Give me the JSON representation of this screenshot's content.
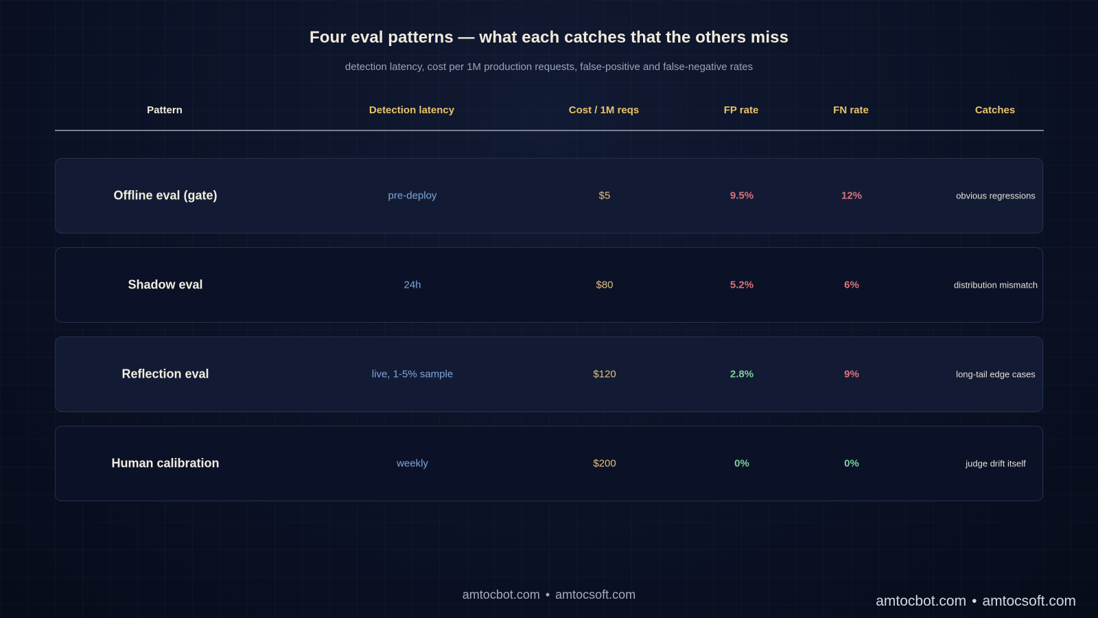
{
  "title": "Four eval patterns — what each catches that the others miss",
  "subtitle": "detection latency, cost per 1M production requests, false-positive and false-negative rates",
  "columns": {
    "pattern": "Pattern",
    "latency": "Detection latency",
    "cost": "Cost / 1M reqs",
    "fp": "FP rate",
    "fn": "FN rate",
    "catches": "Catches"
  },
  "rows": [
    {
      "pattern": "Offline eval (gate)",
      "latency": "pre-deploy",
      "cost": "$5",
      "fp": "9.5%",
      "fn": "12%",
      "catches": "obvious regressions"
    },
    {
      "pattern": "Shadow eval",
      "latency": "24h",
      "cost": "$80",
      "fp": "5.2%",
      "fn": "6%",
      "catches": "distribution mismatch"
    },
    {
      "pattern": "Reflection eval",
      "latency": "live, 1-5% sample",
      "cost": "$120",
      "fp": "2.8%",
      "fn": "9%",
      "catches": "long-tail edge cases"
    },
    {
      "pattern": "Human calibration",
      "latency": "weekly",
      "cost": "$200",
      "fp": "0%",
      "fn": "0%",
      "catches": "judge drift itself"
    }
  ],
  "footer": {
    "site1": "amtocbot.com",
    "separator": "•",
    "site2": "amtocsoft.com"
  },
  "colors": {
    "background": "#0b1224",
    "header_accent": "#e8c36a",
    "latency": "#7fa6d8",
    "cost": "#e1c07a",
    "rate_high": "#e0717c",
    "rate_low": "#7fcf98"
  }
}
